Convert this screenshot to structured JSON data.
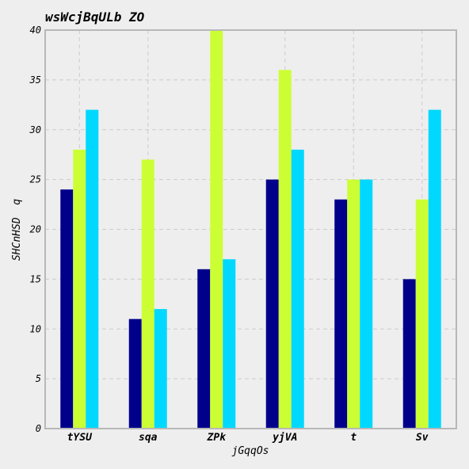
{
  "chart_data": {
    "type": "bar",
    "title": "wsWcjBqULb ZO",
    "xlabel": "jGqqOs",
    "ylabel": "SHCnHSD  q",
    "categories": [
      "tYSU",
      "sqa",
      "ZPk",
      "yjVA",
      "t",
      "Sv"
    ],
    "series": [
      {
        "color": "#00008b",
        "values": [
          24,
          11,
          16,
          25,
          23,
          15
        ]
      },
      {
        "color": "#ccff33",
        "values": [
          28,
          27,
          40,
          36,
          25,
          23
        ]
      },
      {
        "color": "#00d8ff",
        "values": [
          32,
          12,
          17,
          28,
          25,
          32
        ]
      }
    ],
    "ylim": [
      0,
      40
    ],
    "yticks": [
      0,
      5,
      10,
      15,
      20,
      25,
      30,
      35,
      40
    ],
    "grid": true,
    "legend": "none"
  }
}
